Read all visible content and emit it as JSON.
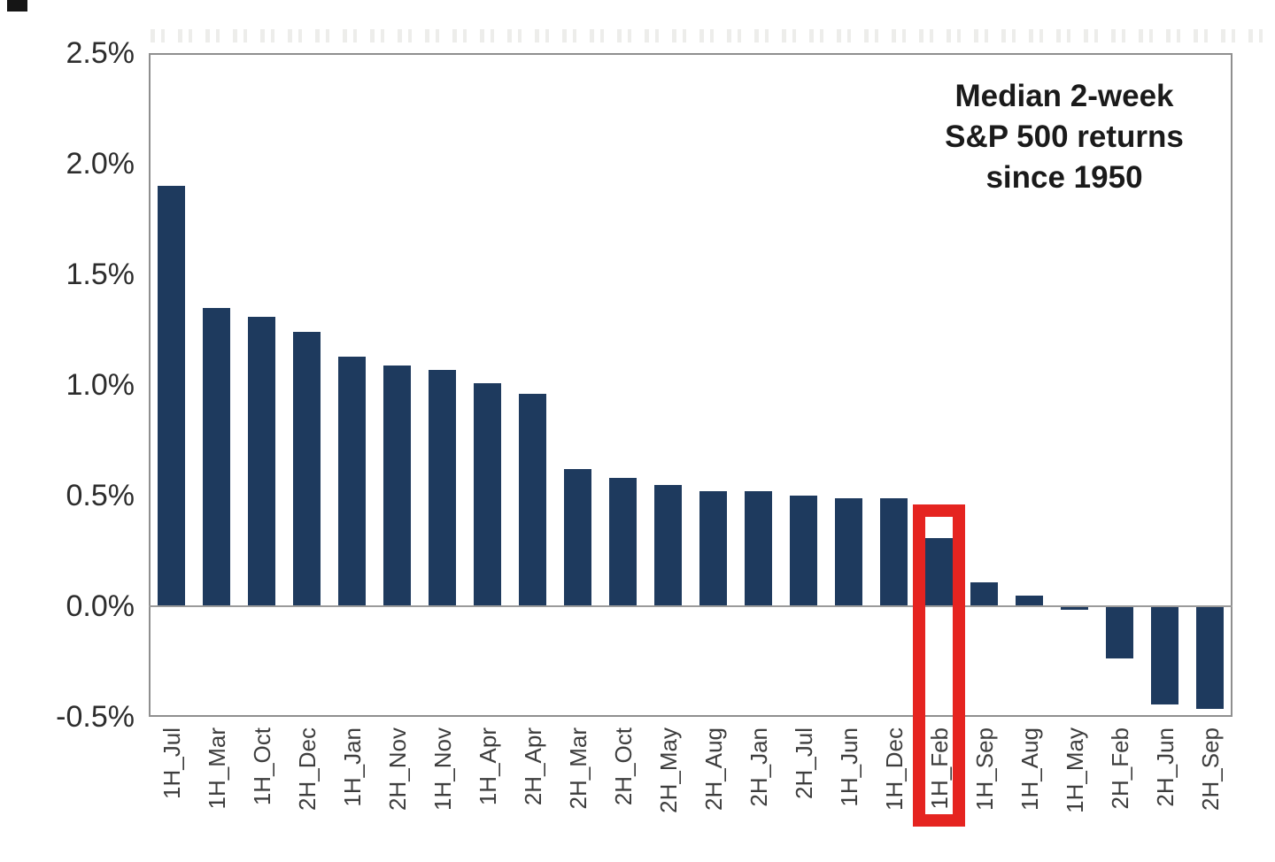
{
  "chart_data": {
    "type": "bar",
    "title": "Median 2-week\nS&P 500 returns\nsince 1950",
    "categories": [
      "1H_Jul",
      "1H_Mar",
      "1H_Oct",
      "2H_Dec",
      "1H_Jan",
      "2H_Nov",
      "1H_Nov",
      "1H_Apr",
      "2H_Apr",
      "2H_Mar",
      "2H_Oct",
      "2H_May",
      "2H_Aug",
      "2H_Jan",
      "2H_Jul",
      "1H_Jun",
      "1H_Dec",
      "1H_Feb",
      "1H_Sep",
      "1H_Aug",
      "1H_May",
      "2H_Feb",
      "2H_Jun",
      "2H_Sep"
    ],
    "values": [
      1.9,
      1.35,
      1.31,
      1.24,
      1.13,
      1.09,
      1.07,
      1.01,
      0.96,
      0.62,
      0.58,
      0.55,
      0.52,
      0.52,
      0.5,
      0.49,
      0.49,
      0.31,
      0.11,
      0.05,
      -0.01,
      -0.23,
      -0.44,
      -0.46
    ],
    "xlabel": "",
    "ylabel": "",
    "y_axis": {
      "tick_labels": [
        "2.5%",
        "2.0%",
        "1.5%",
        "1.0%",
        "0.5%",
        "0.0%",
        "-0.5%"
      ],
      "tick_values": [
        2.5,
        2.0,
        1.5,
        1.0,
        0.5,
        0.0,
        -0.5
      ]
    },
    "ylim": [
      -0.5,
      2.5
    ],
    "grid": false,
    "legend": "none",
    "highlight": {
      "category": "1H_Feb",
      "style": "red-outline-box"
    },
    "colors": {
      "bar": "#1e3a5e",
      "highlight_box": "#e52420",
      "axis_line": "#9b9b9b",
      "plot_border": "#8f8f8f",
      "tick_text": "#3d3d3d",
      "title_text": "#1a1a1a"
    }
  }
}
